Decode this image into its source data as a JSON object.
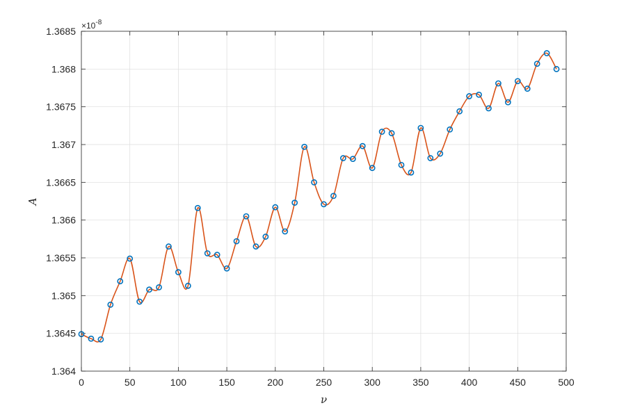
{
  "chart_data": {
    "type": "line",
    "xlabel": "ν",
    "ylabel": "A",
    "xlim": [
      0,
      500
    ],
    "ylim": [
      1.364,
      1.3685
    ],
    "x_ticks": [
      "0",
      "50",
      "100",
      "150",
      "200",
      "250",
      "300",
      "350",
      "400",
      "450",
      "500"
    ],
    "y_ticks": [
      "1.364",
      "1.3645",
      "1.365",
      "1.3655",
      "1.366",
      "1.3665",
      "1.367",
      "1.3675",
      "1.368",
      "1.3685"
    ],
    "y_exponent_prefix": "×10",
    "y_exponent": "-8",
    "grid": true,
    "series": [
      {
        "marker": "circle",
        "smooth_line": true,
        "marker_color": "#0072BD",
        "line_color": "#D95319",
        "x": [
          0,
          10,
          20,
          30,
          40,
          50,
          60,
          70,
          80,
          90,
          100,
          110,
          120,
          130,
          140,
          150,
          160,
          170,
          180,
          190,
          200,
          210,
          220,
          230,
          240,
          250,
          260,
          270,
          280,
          290,
          300,
          310,
          320,
          330,
          340,
          350,
          360,
          370,
          380,
          390,
          400,
          410,
          420,
          430,
          440,
          450,
          460,
          470,
          480,
          490
        ],
        "y": [
          1.36449,
          1.36443,
          1.36442,
          1.36488,
          1.36519,
          1.36549,
          1.36492,
          1.36508,
          1.36511,
          1.36565,
          1.36531,
          1.36513,
          1.36616,
          1.36556,
          1.36554,
          1.36536,
          1.36572,
          1.36605,
          1.36565,
          1.36578,
          1.36617,
          1.36585,
          1.36623,
          1.36697,
          1.3665,
          1.36621,
          1.36632,
          1.36682,
          1.36681,
          1.36698,
          1.36669,
          1.36717,
          1.36715,
          1.36673,
          1.36663,
          1.36722,
          1.36682,
          1.36688,
          1.3672,
          1.36744,
          1.36764,
          1.36766,
          1.36748,
          1.36781,
          1.36756,
          1.36784,
          1.36774,
          1.36807,
          1.36821,
          1.368
        ]
      }
    ]
  }
}
